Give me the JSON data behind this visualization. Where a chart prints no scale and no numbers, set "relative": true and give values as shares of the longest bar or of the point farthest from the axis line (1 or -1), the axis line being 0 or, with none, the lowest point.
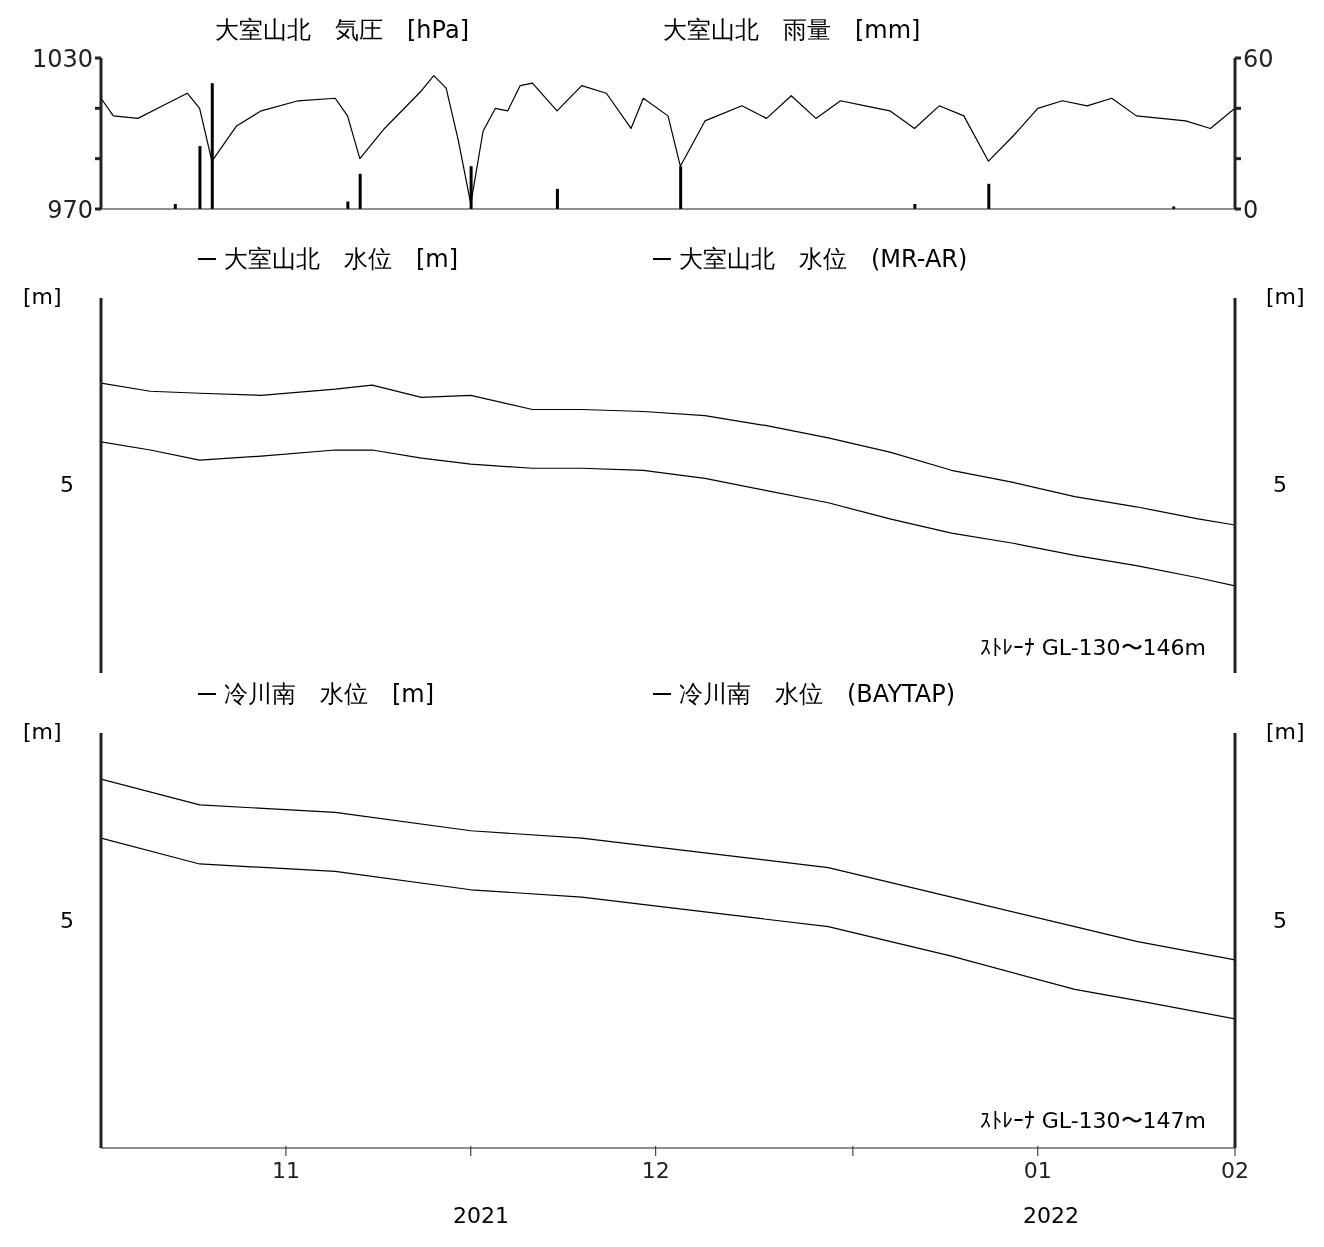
{
  "chart_data": [
    {
      "type": "line",
      "ylabel": "大室山北　気圧　[hPa]",
      "y2label": "大室山北　雨量　[mm]",
      "xlim": [
        "2021-11-01",
        "2022-02-01"
      ],
      "ylim": [
        970,
        1030
      ],
      "yticks": [
        970,
        {
          "value": 990,
          "label": null
        },
        {
          "value": 1010,
          "label": null
        },
        1030
      ],
      "y2lim": [
        0,
        60
      ],
      "y2ticks": [
        0,
        {
          "value": 20,
          "label": null
        },
        {
          "value": 40,
          "label": null
        },
        60
      ],
      "tick_labels": "y",
      "legend": false,
      "marker": "none",
      "line_style": "solid",
      "series": [
        {
          "type": "line",
          "color": "#000000",
          "x": [
            "2021-11-01",
            "2021-11-02",
            "2021-11-04",
            "2021-11-06",
            "2021-11-08",
            "2021-11-09",
            "2021-11-10",
            "2021-11-12",
            "2021-11-14",
            "2021-11-17",
            "2021-11-20",
            "2021-11-21",
            "2021-11-22",
            "2021-11-24",
            "2021-11-27",
            "2021-11-28",
            "2021-11-29",
            "2021-11-30",
            "2021-12-01",
            "2021-12-02",
            "2021-12-03",
            "2021-12-04",
            "2021-12-05",
            "2021-12-06",
            "2021-12-08",
            "2021-12-10",
            "2021-12-12",
            "2021-12-14",
            "2021-12-15",
            "2021-12-17",
            "2021-12-18",
            "2021-12-20",
            "2021-12-23",
            "2021-12-25",
            "2021-12-27",
            "2021-12-29",
            "2021-12-31",
            "2022-01-02",
            "2022-01-04",
            "2022-01-06",
            "2022-01-08",
            "2022-01-10",
            "2022-01-12",
            "2022-01-14",
            "2022-01-16",
            "2022-01-18",
            "2022-01-20",
            "2022-01-22",
            "2022-01-24",
            "2022-01-26",
            "2022-01-28",
            "2022-01-30",
            "2022-02-01"
          ],
          "values": [
            1014,
            1007,
            1006,
            1011,
            1016,
            1010,
            989,
            1003,
            1009,
            1013,
            1014,
            1007,
            990,
            1002,
            1017,
            1023,
            1018,
            997,
            972,
            1001,
            1010,
            1009,
            1019,
            1020,
            1009,
            1019,
            1016,
            1002,
            1014,
            1007,
            987,
            1005,
            1011,
            1006,
            1015,
            1006,
            1013,
            1011,
            1009,
            1002,
            1011,
            1007,
            989,
            999,
            1010,
            1013,
            1011,
            1014,
            1007,
            1006,
            1005,
            1002,
            1010
          ]
        },
        {
          "type": "bar",
          "axis": "y2",
          "color": "#000000",
          "x": [
            "2021-11-07",
            "2021-11-09",
            "2021-11-10",
            "2021-11-21",
            "2021-11-22",
            "2021-12-01",
            "2021-12-08",
            "2021-12-18",
            "2022-01-06",
            "2022-01-12",
            "2022-01-27"
          ],
          "values": [
            2,
            25,
            50,
            3,
            14,
            17,
            8,
            17,
            2,
            10,
            1
          ]
        }
      ]
    },
    {
      "type": "line",
      "relative": true,
      "ylabel": "[m]",
      "y2label": "[m]",
      "xlim": [
        "2021-11-01",
        "2022-02-01"
      ],
      "tick_labels": false,
      "legend": "top",
      "marker": "none",
      "line_style": "solid",
      "x": [
        "2021-11-01",
        "2021-11-05",
        "2021-11-09",
        "2021-11-14",
        "2021-11-20",
        "2021-11-23",
        "2021-11-27",
        "2021-12-01",
        "2021-12-06",
        "2021-12-10",
        "2021-12-15",
        "2021-12-20",
        "2021-12-25",
        "2021-12-30",
        "2022-01-04",
        "2022-01-09",
        "2022-01-14",
        "2022-01-19",
        "2022-01-24",
        "2022-01-29",
        "2022-02-01"
      ],
      "series": [
        {
          "name": "大室山北　水位　[m]",
          "color": "#000000",
          "values": [
            1.0,
            0.96,
            0.95,
            0.94,
            0.97,
            0.99,
            0.93,
            0.94,
            0.87,
            0.87,
            0.86,
            0.84,
            0.79,
            0.73,
            0.66,
            0.57,
            0.51,
            0.44,
            0.39,
            0.33,
            0.3
          ]
        },
        {
          "name": "大室山北　水位　(MR-AR)",
          "color": "#000000",
          "values": [
            0.71,
            0.67,
            0.62,
            0.64,
            0.67,
            0.67,
            0.63,
            0.6,
            0.58,
            0.58,
            0.57,
            0.53,
            0.47,
            0.41,
            0.33,
            0.26,
            0.21,
            0.15,
            0.1,
            0.04,
            0
          ]
        }
      ],
      "annotations": [
        "5",
        "5",
        "ｽﾄﾚｰﾅ GL-130〜146m"
      ]
    },
    {
      "type": "line",
      "relative": true,
      "ylabel": "[m]",
      "y2label": "[m]",
      "xlim": [
        "2021-11-01",
        "2022-02-01"
      ],
      "xticks": [
        {
          "value": "2021-11-16",
          "label": "11"
        },
        {
          "value": "2021-12-01",
          "label": null
        },
        {
          "value": "2021-12-16",
          "label": "12"
        },
        {
          "value": "2022-01-01",
          "label": null
        },
        {
          "value": "2022-01-16",
          "label": "01"
        },
        {
          "value": "2022-02-01",
          "label": "02"
        }
      ],
      "tick_labels": "x",
      "legend": "top",
      "marker": "none",
      "line_style": "solid",
      "x": [
        "2021-11-01",
        "2021-11-09",
        "2021-11-20",
        "2021-12-01",
        "2021-12-10",
        "2021-12-20",
        "2021-12-30",
        "2022-01-09",
        "2022-01-19",
        "2022-01-24",
        "2022-02-01"
      ],
      "series": [
        {
          "name": "冷川南　水位　[m]",
          "color": "#000000",
          "values": [
            1.0,
            0.93,
            0.91,
            0.86,
            0.84,
            0.8,
            0.76,
            0.68,
            0.6,
            0.56,
            0.51
          ]
        },
        {
          "name": "冷川南　水位　(BAYTAP)",
          "color": "#000000",
          "values": [
            0.84,
            0.77,
            0.75,
            0.7,
            0.68,
            0.64,
            0.6,
            0.52,
            0.43,
            0.4,
            0.35
          ]
        }
      ],
      "annotations": [
        "5",
        "5",
        "ｽﾄﾚｰﾅ GL-130〜147m",
        "2021",
        "2022"
      ]
    }
  ]
}
